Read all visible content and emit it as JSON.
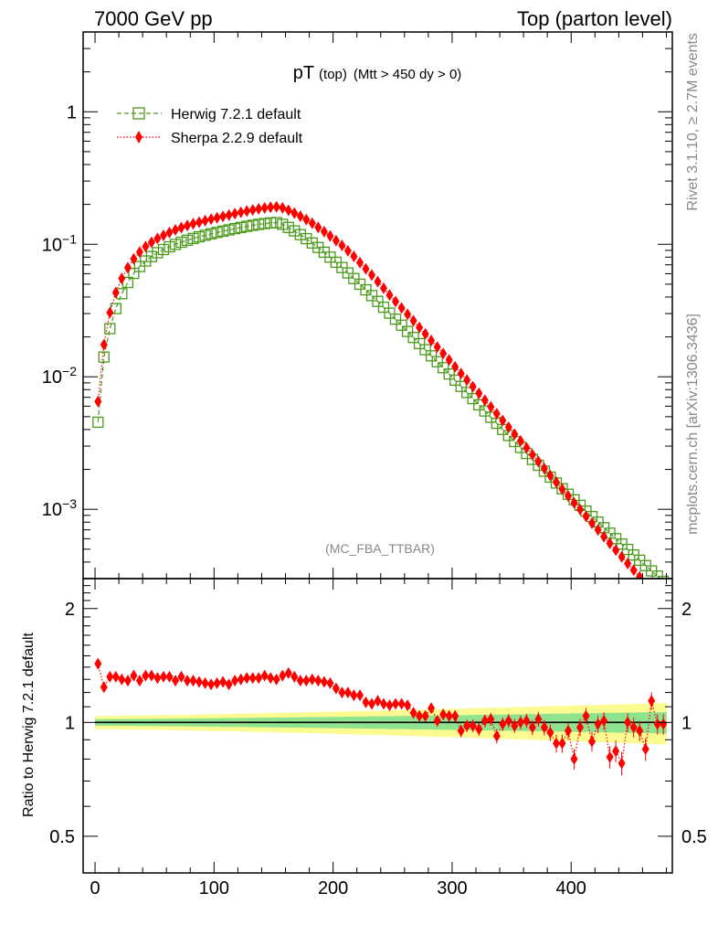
{
  "header": {
    "left": "7000 GeV pp",
    "right": "Top (parton level)"
  },
  "side_text": {
    "rivet": "Rivet 3.1.10, ≥ 2.7M events",
    "mcplots": "mcplots.cern.ch [arXiv:1306.3436]"
  },
  "analysis_label": "(MC_FBA_TTBAR)",
  "main_title": {
    "main": "pT",
    "sub": "(top)",
    "cut": "(Mtt > 450 dy > 0)"
  },
  "legend": [
    {
      "label": "Herwig 7.2.1 default",
      "color": "#4a9a1a",
      "marker": "open-square",
      "line": "dashed"
    },
    {
      "label": "Sherpa 2.2.9 default",
      "color": "#ff0000",
      "marker": "filled-diamond",
      "line": "dotted"
    }
  ],
  "ratio_ylabel": "Ratio to Herwig 7.2.1 default",
  "chart_data": [
    {
      "type": "scatter",
      "panel": "main",
      "yscale": "log",
      "xlim": [
        -10,
        485
      ],
      "ylim": [
        0.0003,
        4.0
      ],
      "xticks": [
        0,
        100,
        200,
        300,
        400
      ],
      "yticks": [
        {
          "value": 0.001,
          "label": "10^-3"
        },
        {
          "value": 0.01,
          "label": "10^-2"
        },
        {
          "value": 0.1,
          "label": "10^-1"
        },
        {
          "value": 1,
          "label": "1"
        }
      ],
      "x": [
        2.5,
        7.5,
        12.5,
        17.5,
        22.5,
        27.5,
        32.5,
        37.5,
        42.5,
        47.5,
        52.5,
        57.5,
        62.5,
        67.5,
        72.5,
        77.5,
        82.5,
        87.5,
        92.5,
        97.5,
        102.5,
        107.5,
        112.5,
        117.5,
        122.5,
        127.5,
        132.5,
        137.5,
        142.5,
        147.5,
        152.5,
        157.5,
        162.5,
        167.5,
        172.5,
        177.5,
        182.5,
        187.5,
        192.5,
        197.5,
        202.5,
        207.5,
        212.5,
        217.5,
        222.5,
        227.5,
        232.5,
        237.5,
        242.5,
        247.5,
        252.5,
        257.5,
        262.5,
        267.5,
        272.5,
        277.5,
        282.5,
        287.5,
        292.5,
        297.5,
        302.5,
        307.5,
        312.5,
        317.5,
        322.5,
        327.5,
        332.5,
        337.5,
        342.5,
        347.5,
        352.5,
        357.5,
        362.5,
        367.5,
        372.5,
        377.5,
        382.5,
        387.5,
        392.5,
        397.5,
        402.5,
        407.5,
        412.5,
        417.5,
        422.5,
        427.5,
        432.5,
        437.5,
        442.5,
        447.5,
        452.5,
        457.5,
        462.5,
        467.5,
        472.5,
        477.5
      ],
      "series": [
        {
          "name": "Herwig 7.2.1 default",
          "values": [
            0.00454,
            0.0141,
            0.0231,
            0.0327,
            0.0424,
            0.0515,
            0.0603,
            0.0679,
            0.0749,
            0.0808,
            0.0864,
            0.0913,
            0.0957,
            0.0997,
            0.1036,
            0.1072,
            0.1106,
            0.1138,
            0.1169,
            0.1199,
            0.1228,
            0.1257,
            0.1285,
            0.1313,
            0.134,
            0.1366,
            0.139,
            0.1413,
            0.1432,
            0.1448,
            0.1459,
            0.1415,
            0.134,
            0.1262,
            0.1183,
            0.1103,
            0.1023,
            0.0946,
            0.0872,
            0.08,
            0.0732,
            0.0668,
            0.0608,
            0.0552,
            0.05,
            0.0453,
            0.041,
            0.0371,
            0.0335,
            0.0302,
            0.0272,
            0.0245,
            0.022,
            0.0198,
            0.0178,
            0.016,
            0.0144,
            0.013,
            0.0117,
            0.0105,
            0.00943,
            0.00847,
            0.00761,
            0.00684,
            0.00614,
            0.00552,
            0.00496,
            0.00446,
            0.00401,
            0.00361,
            0.00325,
            0.00293,
            0.00264,
            0.00238,
            0.00215,
            0.00194,
            0.00175,
            0.00158,
            0.00143,
            0.0013,
            0.00118,
            0.00107,
            0.00097,
            0.00088,
            0.0008,
            0.000727,
            0.000661,
            0.000601,
            0.000547,
            0.000498,
            0.000453,
            0.000413,
            0.000376,
            0.000343,
            0.000313,
            0.000286
          ]
        },
        {
          "name": "Sherpa 2.2.9 default",
          "values": [
            0.0065,
            0.0175,
            0.0305,
            0.0432,
            0.0553,
            0.0665,
            0.0776,
            0.0875,
            0.0961,
            0.1035,
            0.1106,
            0.1167,
            0.1226,
            0.1284,
            0.1337,
            0.1385,
            0.1428,
            0.1467,
            0.1508,
            0.1546,
            0.1584,
            0.1623,
            0.1663,
            0.1703,
            0.1743,
            0.1782,
            0.1819,
            0.1852,
            0.188,
            0.1901,
            0.1915,
            0.1884,
            0.1806,
            0.1719,
            0.163,
            0.1537,
            0.144,
            0.1342,
            0.1247,
            0.1156,
            0.1066,
            0.098,
            0.0893,
            0.081,
            0.0728,
            0.0653,
            0.0586,
            0.0523,
            0.0466,
            0.0414,
            0.037,
            0.0331,
            0.0296,
            0.0265,
            0.0236,
            0.0211,
            0.0188,
            0.0168,
            0.015,
            0.0134,
            0.0119,
            0.0106,
            0.00946,
            0.00843,
            0.0075,
            0.00667,
            0.00593,
            0.00527,
            0.00468,
            0.00416,
            0.00369,
            0.00328,
            0.00291,
            0.00258,
            0.00229,
            0.00203,
            0.0018,
            0.0016,
            0.00142,
            0.00126,
            0.00112,
            0.000996,
            0.000885,
            0.000786,
            0.000699,
            0.000622,
            0.000553,
            0.000492,
            0.000438,
            0.00039,
            0.000347,
            0.000309,
            0.000275,
            0.000245,
            0.000218,
            0.000194
          ]
        }
      ]
    },
    {
      "type": "scatter",
      "panel": "ratio",
      "yscale": "log",
      "xlim": [
        -10,
        485
      ],
      "ylim": [
        0.4,
        2.4
      ],
      "xticks": [
        0,
        100,
        200,
        300,
        400
      ],
      "yticks": [
        {
          "value": 0.5,
          "label": "0.5"
        },
        {
          "value": 1,
          "label": "1"
        },
        {
          "value": 2,
          "label": "2"
        }
      ],
      "reference_line": 1,
      "uncertainty_band_colors": {
        "inner": "#8fe38f",
        "outer": "#fbfb91"
      },
      "x": [
        2.5,
        7.5,
        12.5,
        17.5,
        22.5,
        27.5,
        32.5,
        37.5,
        42.5,
        47.5,
        52.5,
        57.5,
        62.5,
        67.5,
        72.5,
        77.5,
        82.5,
        87.5,
        92.5,
        97.5,
        102.5,
        107.5,
        112.5,
        117.5,
        122.5,
        127.5,
        132.5,
        137.5,
        142.5,
        147.5,
        152.5,
        157.5,
        162.5,
        167.5,
        172.5,
        177.5,
        182.5,
        187.5,
        192.5,
        197.5,
        202.5,
        207.5,
        212.5,
        217.5,
        222.5,
        227.5,
        232.5,
        237.5,
        242.5,
        247.5,
        252.5,
        257.5,
        262.5,
        267.5,
        272.5,
        277.5,
        282.5,
        287.5,
        292.5,
        297.5,
        302.5,
        307.5,
        312.5,
        317.5,
        322.5,
        327.5,
        332.5,
        337.5,
        342.5,
        347.5,
        352.5,
        357.5,
        362.5,
        367.5,
        372.5,
        377.5,
        382.5,
        387.5,
        392.5,
        397.5,
        402.5,
        407.5,
        412.5,
        417.5,
        422.5,
        427.5,
        432.5,
        437.5,
        442.5,
        447.5,
        452.5,
        457.5,
        462.5,
        467.5,
        472.5,
        477.5
      ],
      "series": [
        {
          "name": "Sherpa 2.2.9 default",
          "values": [
            1.43,
            1.24,
            1.32,
            1.32,
            1.3,
            1.29,
            1.33,
            1.29,
            1.33,
            1.33,
            1.31,
            1.32,
            1.32,
            1.29,
            1.32,
            1.29,
            1.29,
            1.28,
            1.27,
            1.26,
            1.27,
            1.28,
            1.26,
            1.29,
            1.3,
            1.31,
            1.31,
            1.31,
            1.33,
            1.31,
            1.3,
            1.33,
            1.35,
            1.32,
            1.29,
            1.29,
            1.3,
            1.29,
            1.28,
            1.27,
            1.23,
            1.2,
            1.2,
            1.18,
            1.18,
            1.13,
            1.12,
            1.14,
            1.12,
            1.11,
            1.12,
            1.12,
            1.11,
            1.06,
            1.04,
            1.04,
            1.09,
            1.01,
            1.05,
            1.04,
            1.04,
            0.95,
            0.98,
            0.98,
            0.96,
            1.01,
            1.02,
            0.92,
            0.99,
            1.01,
            0.98,
            1.0,
            1.01,
            0.97,
            1.02,
            0.97,
            0.94,
            0.88,
            0.88,
            0.95,
            0.8,
            0.97,
            1.04,
            0.89,
            0.99,
            1.01,
            0.81,
            0.84,
            0.78,
            1.0,
            0.97,
            0.95,
            0.85,
            1.14,
            0.99,
            0.99
          ]
        }
      ]
    }
  ]
}
